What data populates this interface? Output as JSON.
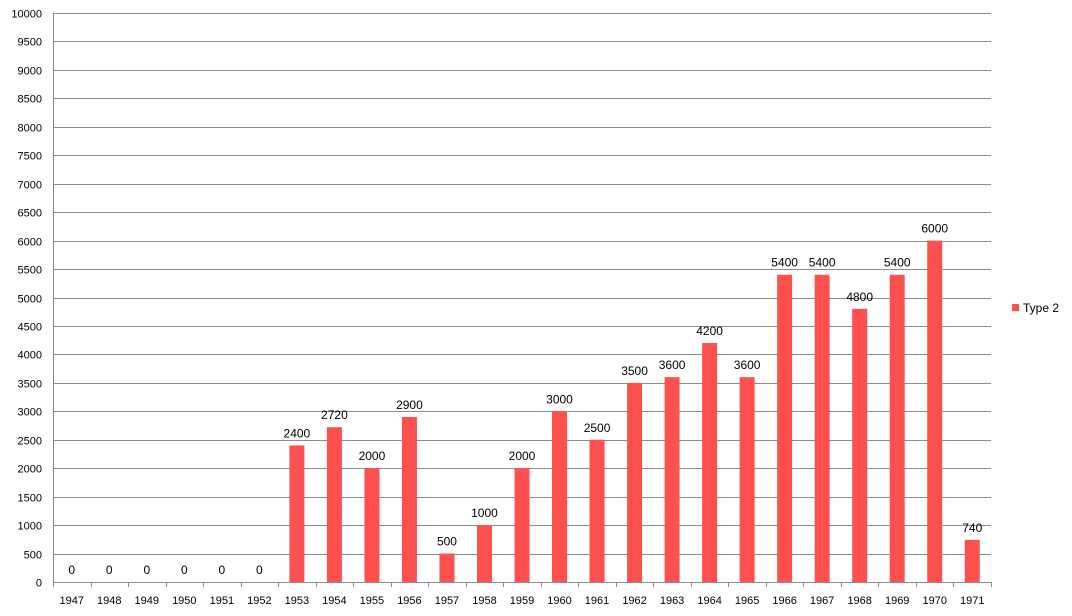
{
  "chart_data": {
    "type": "bar",
    "categories": [
      "1947",
      "1948",
      "1949",
      "1950",
      "1951",
      "1952",
      "1953",
      "1954",
      "1955",
      "1956",
      "1957",
      "1958",
      "1959",
      "1960",
      "1961",
      "1962",
      "1963",
      "1964",
      "1965",
      "1966",
      "1967",
      "1968",
      "1969",
      "1970",
      "1971"
    ],
    "series": [
      {
        "name": "Type 2",
        "color": "#ff5050",
        "values": [
          0,
          0,
          0,
          0,
          0,
          0,
          2400,
          2720,
          2000,
          2900,
          500,
          1000,
          2000,
          3000,
          2500,
          3500,
          3600,
          4200,
          3600,
          5400,
          5400,
          4800,
          5400,
          6000,
          740
        ]
      }
    ],
    "ylim": [
      0,
      10000
    ],
    "ytick_step": 500,
    "grid": true,
    "legend_position": "right",
    "data_labels": true,
    "title": "",
    "xlabel": "",
    "ylabel": ""
  }
}
